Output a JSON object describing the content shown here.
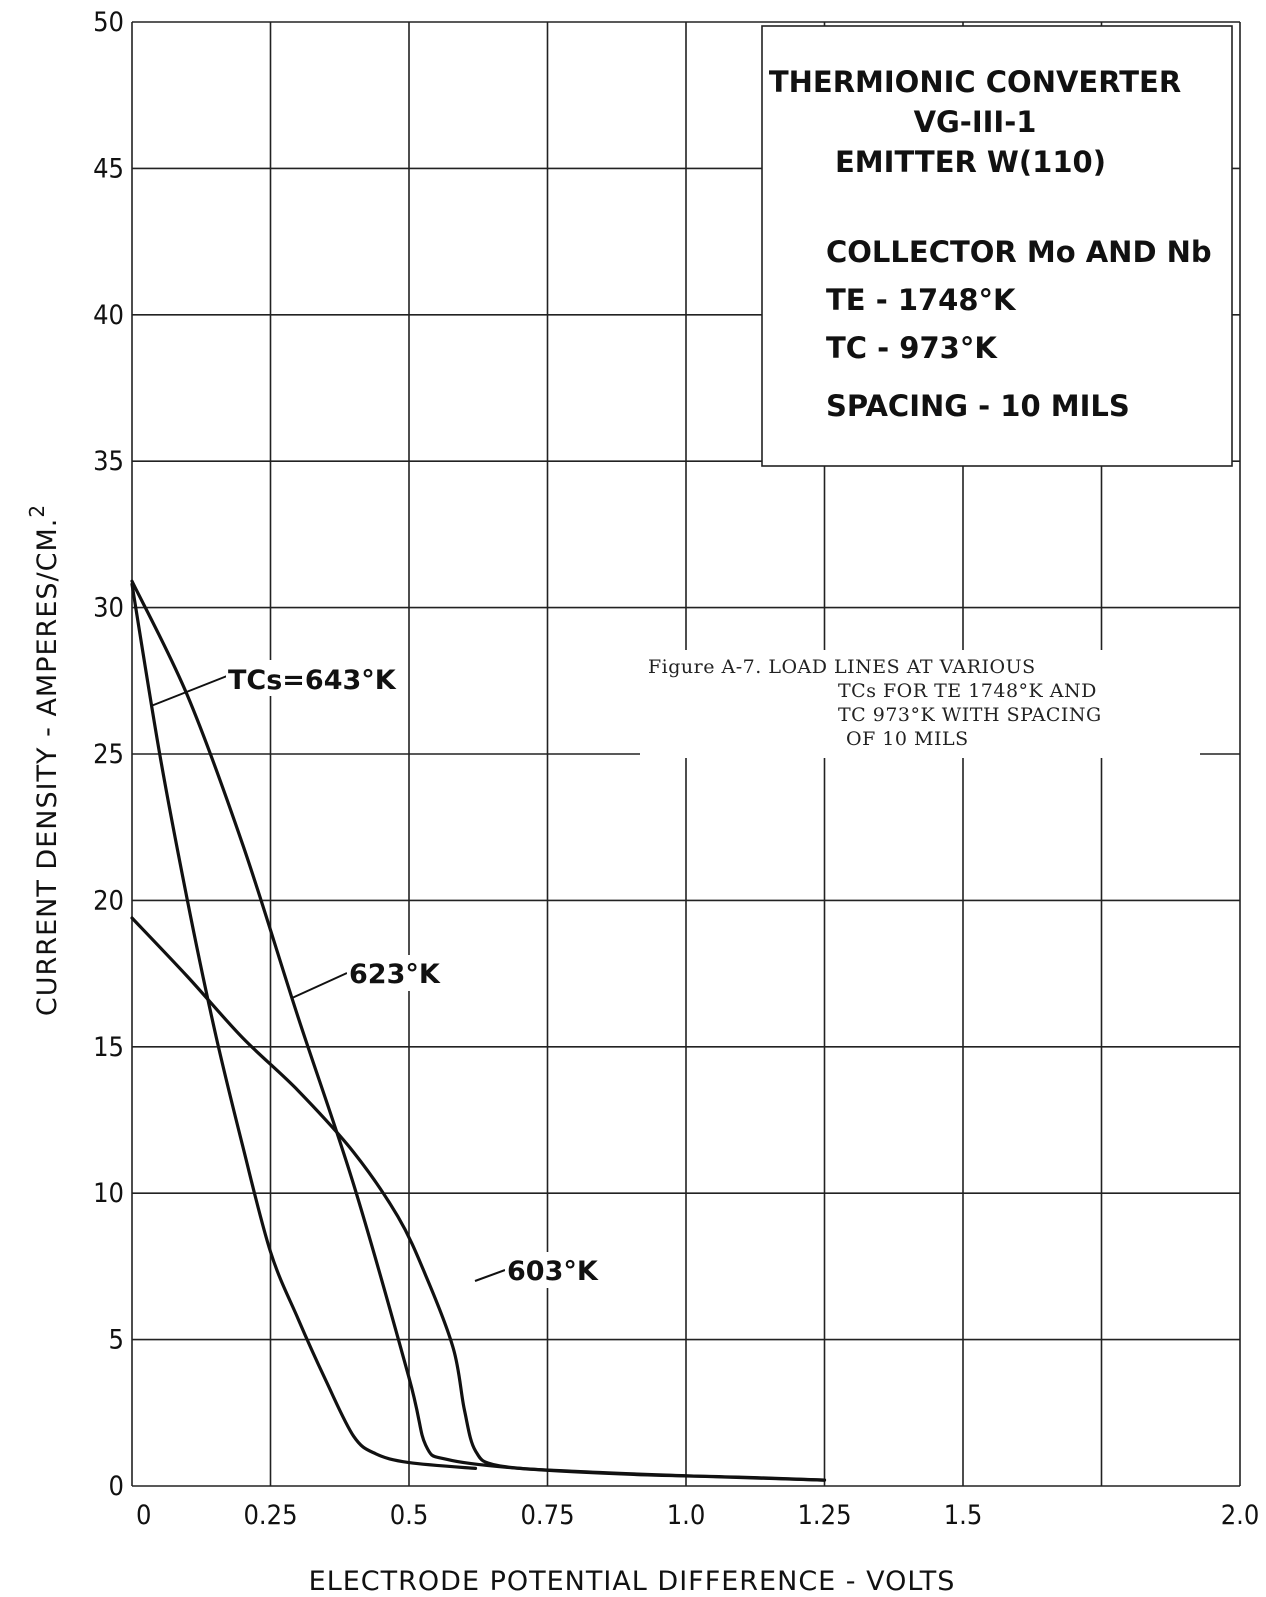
{
  "chart_data": {
    "type": "line",
    "xlabel": "ELECTRODE POTENTIAL DIFFERENCE - VOLTS",
    "ylabel": "CURRENT DENSITY - AMPERES/CM.",
    "ylabel_superscript": "2",
    "xlim": [
      0,
      2.0
    ],
    "ylim": [
      0,
      50
    ],
    "x_ticks": [
      "0",
      "0.25",
      "0.5",
      "0.75",
      "1.0",
      "1.25",
      "1.5",
      "2.0"
    ],
    "x_tick_values": [
      0,
      0.25,
      0.5,
      0.75,
      1.0,
      1.25,
      1.5,
      2.0
    ],
    "y_ticks": [
      "0",
      "5",
      "10",
      "15",
      "20",
      "25",
      "30",
      "35",
      "40",
      "45",
      "50"
    ],
    "grid": true,
    "info_box": {
      "lines": [
        "THERMIONIC CONVERTER",
        "VG-III-1",
        "EMITTER W(110)",
        "COLLECTOR Mo AND Nb",
        "TE - 1748°K",
        "TC - 973°K",
        "SPACING - 10 MILS"
      ]
    },
    "caption": {
      "lines": [
        "Figure A-7.  LOAD LINES AT VARIOUS",
        "TCs FOR TE 1748°K AND",
        "TC 973°K WITH SPACING",
        "OF 10 MILS"
      ]
    },
    "series": [
      {
        "name": "TCs=643°K",
        "points": [
          [
            0,
            30.9
          ],
          [
            0.1,
            27.0
          ],
          [
            0.2,
            21.9
          ],
          [
            0.3,
            16.0
          ],
          [
            0.4,
            10.3
          ],
          [
            0.5,
            3.7
          ],
          [
            0.53,
            1.4
          ],
          [
            0.57,
            0.9
          ],
          [
            0.7,
            0.6
          ],
          [
            0.9,
            0.4
          ],
          [
            1.1,
            0.3
          ],
          [
            1.25,
            0.2
          ]
        ]
      },
      {
        "name": "623°K",
        "points": [
          [
            0,
            30.8
          ],
          [
            0.05,
            25.0
          ],
          [
            0.1,
            20.0
          ],
          [
            0.15,
            15.5
          ],
          [
            0.2,
            11.6
          ],
          [
            0.25,
            8.0
          ],
          [
            0.3,
            5.7
          ],
          [
            0.35,
            3.6
          ],
          [
            0.4,
            1.7
          ],
          [
            0.44,
            1.1
          ],
          [
            0.5,
            0.8
          ],
          [
            0.62,
            0.6
          ]
        ]
      },
      {
        "name": "603°K",
        "points": [
          [
            0,
            19.4
          ],
          [
            0.1,
            17.4
          ],
          [
            0.2,
            15.3
          ],
          [
            0.3,
            13.5
          ],
          [
            0.4,
            11.4
          ],
          [
            0.48,
            9.2
          ],
          [
            0.53,
            7.2
          ],
          [
            0.58,
            4.7
          ],
          [
            0.6,
            2.6
          ],
          [
            0.62,
            1.2
          ],
          [
            0.66,
            0.7
          ],
          [
            0.8,
            0.5
          ],
          [
            1.0,
            0.35
          ],
          [
            1.25,
            0.2
          ]
        ]
      }
    ]
  }
}
